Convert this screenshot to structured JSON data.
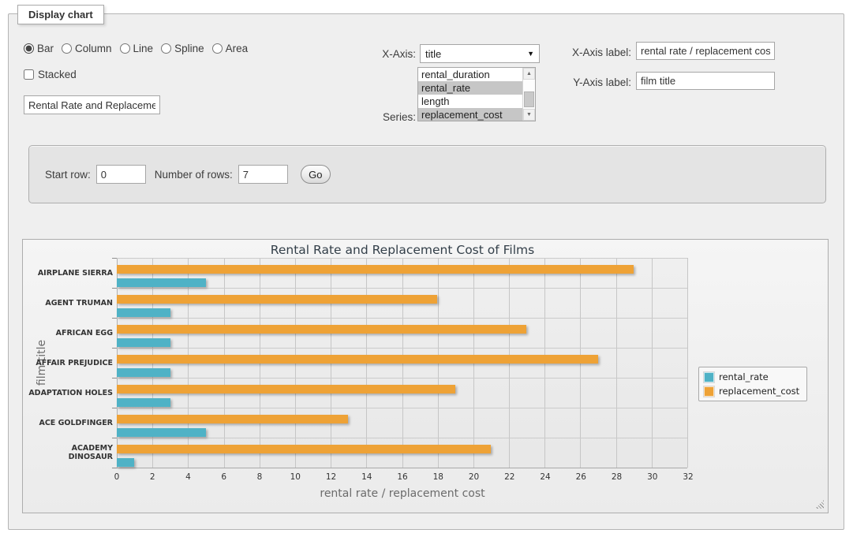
{
  "panel": {
    "legend": "Display chart"
  },
  "icons": {
    "dropdown_arrow": "▼",
    "scroll_up": "▲",
    "scroll_down": "▼"
  },
  "controls": {
    "chart_types": [
      {
        "label": "Bar",
        "selected": true
      },
      {
        "label": "Column",
        "selected": false
      },
      {
        "label": "Line",
        "selected": false
      },
      {
        "label": "Spline",
        "selected": false
      },
      {
        "label": "Area",
        "selected": false
      }
    ],
    "stacked_label": "Stacked",
    "stacked_checked": false,
    "title_value": "Rental Rate and Replacement Cost of Films",
    "x_axis_select_label": "X-Axis:",
    "x_axis_selected": "title",
    "series_label": "Series:",
    "series_options": [
      {
        "label": "rental_duration",
        "selected": false
      },
      {
        "label": "rental_rate",
        "selected": true
      },
      {
        "label": "length",
        "selected": false
      },
      {
        "label": "replacement_cost",
        "selected": true
      }
    ],
    "x_axis_label_label": "X-Axis label:",
    "x_axis_label_value": "rental rate / replacement cost",
    "y_axis_label_label": "Y-Axis label:",
    "y_axis_label_value": "film title"
  },
  "rows_bar": {
    "start_row_label": "Start row:",
    "start_row_value": "0",
    "num_rows_label": "Number of rows:",
    "num_rows_value": "7",
    "go_label": "Go"
  },
  "chart_data": {
    "type": "bar",
    "title": "Rental Rate and Replacement Cost of Films",
    "categories": [
      "AIRPLANE SIERRA",
      "AGENT TRUMAN",
      "AFRICAN EGG",
      "AFFAIR PREJUDICE",
      "ADAPTATION HOLES",
      "ACE GOLDFINGER",
      "ACADEMY DINOSAUR"
    ],
    "series": [
      {
        "name": "rental_rate",
        "color": "#4FB2C6",
        "values": [
          4.99,
          2.99,
          2.99,
          2.99,
          2.99,
          4.99,
          0.99
        ]
      },
      {
        "name": "replacement_cost",
        "color": "#EEA236",
        "values": [
          28.99,
          17.99,
          22.99,
          26.99,
          18.99,
          12.99,
          20.99
        ]
      }
    ],
    "bar_draw_order_top_to_bottom": [
      "replacement_cost",
      "rental_rate"
    ],
    "xlabel": "rental rate / replacement cost",
    "ylabel": "film title",
    "xlim": [
      0,
      32
    ],
    "x_tick_step": 2,
    "grid": true,
    "legend_position": "right"
  }
}
